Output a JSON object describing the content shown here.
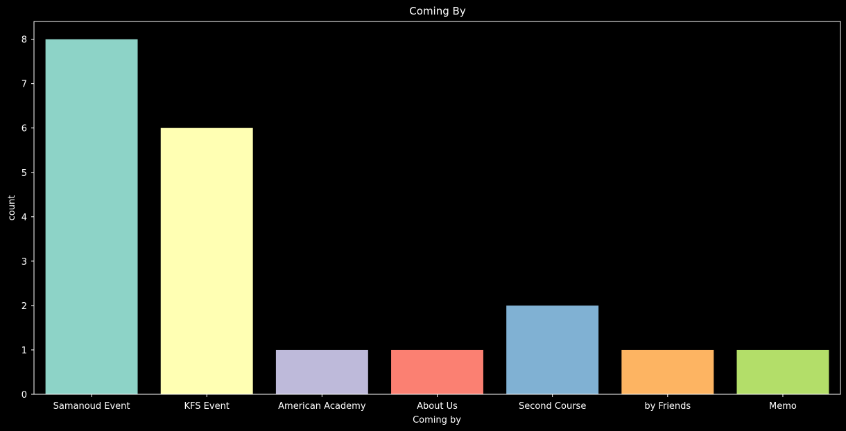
{
  "chart_data": {
    "type": "bar",
    "title": "Coming By",
    "xlabel": "Coming by",
    "ylabel": "count",
    "categories": [
      "Samanoud Event",
      "KFS Event",
      "American Academy",
      "About Us",
      "Second Course",
      "by Friends",
      "Memo"
    ],
    "values": [
      8,
      6,
      1,
      1,
      2,
      1,
      1
    ],
    "colors": [
      "#8dd3c7",
      "#ffffb3",
      "#bebada",
      "#fb8072",
      "#80b1d3",
      "#fdb462",
      "#b3de69"
    ],
    "ylim": [
      0,
      8.4
    ],
    "yticks": [
      "0",
      "1",
      "2",
      "3",
      "4",
      "5",
      "6",
      "7",
      "8"
    ],
    "grid": false,
    "background": "#000000",
    "foreground": "#ffffff"
  }
}
